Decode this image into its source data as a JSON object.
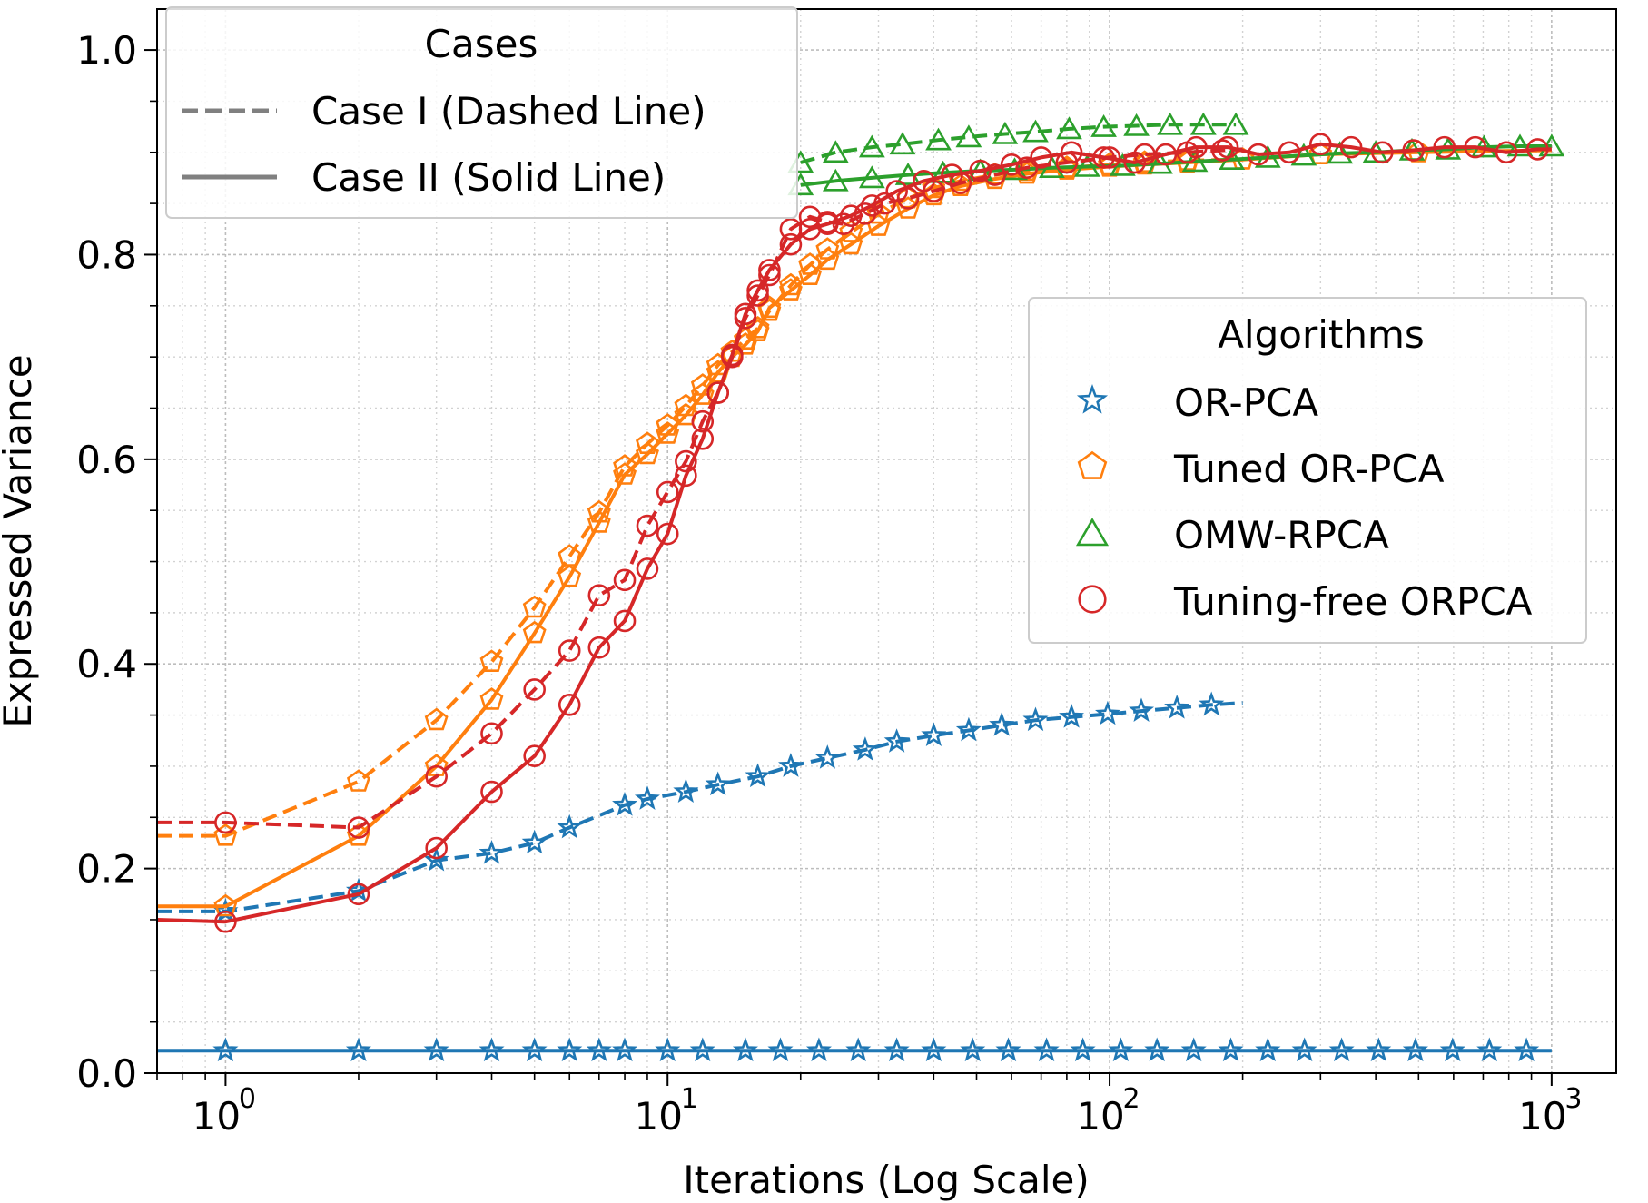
{
  "chart_data": {
    "type": "line",
    "title": "",
    "xlabel": "Iterations (Log Scale)",
    "ylabel": "Expressed Variance",
    "xscale": "log",
    "xlim": [
      0.7,
      1400
    ],
    "ylim": [
      0,
      1.04
    ],
    "grid": true,
    "x_ticks": [
      {
        "value": 1,
        "base": "10",
        "exp": "0"
      },
      {
        "value": 10,
        "base": "10",
        "exp": "1"
      },
      {
        "value": 100,
        "base": "10",
        "exp": "2"
      },
      {
        "value": 1000,
        "base": "10",
        "exp": "3"
      }
    ],
    "y_ticks": [
      {
        "value": 0.0,
        "label": "0.0"
      },
      {
        "value": 0.2,
        "label": "0.2"
      },
      {
        "value": 0.4,
        "label": "0.4"
      },
      {
        "value": 0.6,
        "label": "0.6"
      },
      {
        "value": 0.8,
        "label": "0.8"
      },
      {
        "value": 1.0,
        "label": "1.0"
      }
    ],
    "colors": {
      "OR-PCA": "#1f77b4",
      "Tuned OR-PCA": "#ff7f0e",
      "OMW-RPCA": "#2ca02c",
      "Tuning-free ORPCA": "#d62728"
    },
    "legend_cases": {
      "title": "Cases",
      "placement": "upper-left",
      "entries": [
        {
          "label": "Case I (Dashed Line)",
          "style": "dashed"
        },
        {
          "label": "Case II (Solid Line)",
          "style": "solid"
        }
      ]
    },
    "legend_algorithms": {
      "title": "Algorithms",
      "placement": "center-right",
      "entries": [
        {
          "label": "OR-PCA",
          "marker": "star",
          "color": "#1f77b4"
        },
        {
          "label": "Tuned OR-PCA",
          "marker": "pentagon",
          "color": "#ff7f0e"
        },
        {
          "label": "OMW-RPCA",
          "marker": "triangle",
          "color": "#2ca02c"
        },
        {
          "label": "Tuning-free ORPCA",
          "marker": "circle",
          "color": "#d62728"
        }
      ]
    },
    "series": [
      {
        "algorithm": "OR-PCA",
        "case": "Case I",
        "style": "dashed",
        "marker": "star",
        "color": "#1f77b4",
        "x": [
          0.7,
          1,
          2,
          3,
          4,
          5,
          6,
          8,
          9,
          11,
          13,
          16,
          19,
          23,
          28,
          33,
          40,
          48,
          57,
          68,
          82,
          99,
          118,
          142,
          170,
          200
        ],
        "y": [
          0.158,
          0.158,
          0.178,
          0.208,
          0.215,
          0.225,
          0.24,
          0.262,
          0.268,
          0.275,
          0.282,
          0.29,
          0.3,
          0.308,
          0.316,
          0.324,
          0.33,
          0.335,
          0.34,
          0.345,
          0.348,
          0.351,
          0.354,
          0.357,
          0.36,
          0.362
        ],
        "markers": [
          false,
          true,
          true,
          true,
          true,
          true,
          true,
          true,
          true,
          true,
          true,
          true,
          true,
          true,
          true,
          true,
          true,
          true,
          true,
          true,
          true,
          true,
          true,
          true,
          true,
          false
        ]
      },
      {
        "algorithm": "OR-PCA",
        "case": "Case II",
        "style": "solid",
        "marker": "star",
        "color": "#1f77b4",
        "x": [
          0.7,
          1,
          2,
          3,
          4,
          5,
          6,
          7,
          8,
          10,
          12,
          15,
          18,
          22,
          27,
          33,
          40,
          49,
          59,
          72,
          87,
          106,
          128,
          155,
          188,
          228,
          276,
          335,
          406,
          492,
          597,
          723,
          877,
          1000
        ],
        "y": [
          0.022,
          0.022,
          0.022,
          0.022,
          0.022,
          0.022,
          0.022,
          0.022,
          0.022,
          0.022,
          0.022,
          0.022,
          0.022,
          0.022,
          0.022,
          0.022,
          0.022,
          0.022,
          0.022,
          0.022,
          0.022,
          0.022,
          0.022,
          0.022,
          0.022,
          0.022,
          0.022,
          0.022,
          0.022,
          0.022,
          0.022,
          0.022,
          0.022,
          0.022
        ],
        "markers": [
          false,
          true,
          true,
          true,
          true,
          true,
          true,
          true,
          true,
          true,
          true,
          true,
          true,
          true,
          true,
          true,
          true,
          true,
          true,
          true,
          true,
          true,
          true,
          true,
          true,
          true,
          true,
          true,
          true,
          true,
          true,
          true,
          true,
          false
        ]
      },
      {
        "algorithm": "Tuned OR-PCA",
        "case": "Case I",
        "style": "dashed",
        "marker": "pentagon",
        "color": "#ff7f0e",
        "x": [
          0.7,
          1,
          2,
          3,
          4,
          5,
          6,
          7,
          8,
          9,
          10,
          11,
          12,
          13,
          14,
          15,
          16,
          17,
          19,
          21,
          23,
          26,
          30,
          35,
          40,
          46,
          55,
          65,
          80,
          100,
          120,
          150,
          200
        ],
        "y": [
          0.232,
          0.232,
          0.285,
          0.345,
          0.402,
          0.455,
          0.505,
          0.548,
          0.593,
          0.615,
          0.633,
          0.652,
          0.672,
          0.692,
          0.705,
          0.717,
          0.728,
          0.745,
          0.77,
          0.79,
          0.805,
          0.822,
          0.84,
          0.855,
          0.865,
          0.872,
          0.878,
          0.882,
          0.885,
          0.888,
          0.89,
          0.892,
          0.893
        ],
        "markers": [
          false,
          true,
          true,
          true,
          true,
          true,
          true,
          true,
          true,
          true,
          true,
          true,
          true,
          true,
          true,
          true,
          true,
          true,
          true,
          true,
          true,
          true,
          true,
          true,
          true,
          true,
          true,
          true,
          true,
          true,
          true,
          true,
          false
        ]
      },
      {
        "algorithm": "Tuned OR-PCA",
        "case": "Case II",
        "style": "solid",
        "marker": "pentagon",
        "color": "#ff7f0e",
        "x": [
          0.7,
          1,
          2,
          3,
          4,
          5,
          6,
          7,
          8,
          9,
          10,
          11,
          12,
          13,
          14,
          15,
          16,
          17,
          19,
          21,
          23,
          26,
          30,
          35,
          40,
          46,
          55,
          65,
          80,
          100,
          120,
          150,
          200,
          300,
          500,
          1000
        ],
        "y": [
          0.163,
          0.163,
          0.232,
          0.3,
          0.365,
          0.43,
          0.485,
          0.538,
          0.585,
          0.605,
          0.625,
          0.643,
          0.663,
          0.685,
          0.7,
          0.712,
          0.725,
          0.748,
          0.765,
          0.78,
          0.795,
          0.81,
          0.828,
          0.845,
          0.858,
          0.867,
          0.874,
          0.879,
          0.883,
          0.886,
          0.888,
          0.89,
          0.893,
          0.898,
          0.9,
          0.902
        ],
        "markers": [
          false,
          true,
          true,
          true,
          true,
          true,
          true,
          true,
          true,
          true,
          true,
          true,
          true,
          true,
          true,
          true,
          true,
          true,
          true,
          true,
          true,
          true,
          true,
          true,
          true,
          true,
          true,
          true,
          true,
          true,
          true,
          true,
          true,
          true,
          true,
          false
        ]
      },
      {
        "algorithm": "OMW-RPCA",
        "case": "Case I",
        "style": "dashed",
        "marker": "triangle",
        "color": "#2ca02c",
        "x": [
          20,
          24,
          29,
          34,
          41,
          48,
          58,
          68,
          81,
          97,
          115,
          137,
          163,
          193
        ],
        "y": [
          0.89,
          0.9,
          0.905,
          0.908,
          0.912,
          0.915,
          0.918,
          0.92,
          0.923,
          0.925,
          0.926,
          0.927,
          0.927,
          0.927
        ],
        "markers": [
          true,
          true,
          true,
          true,
          true,
          true,
          true,
          true,
          true,
          true,
          true,
          true,
          true,
          true
        ]
      },
      {
        "algorithm": "OMW-RPCA",
        "case": "Case II",
        "style": "solid",
        "marker": "triangle",
        "color": "#2ca02c",
        "x": [
          20,
          24,
          29,
          35,
          42,
          51,
          61,
          74,
          89,
          107,
          130,
          156,
          189,
          228,
          275,
          332,
          400,
          483,
          583,
          703,
          848,
          1000
        ],
        "y": [
          0.868,
          0.872,
          0.875,
          0.878,
          0.88,
          0.882,
          0.883,
          0.885,
          0.886,
          0.887,
          0.889,
          0.891,
          0.893,
          0.895,
          0.897,
          0.899,
          0.9,
          0.902,
          0.903,
          0.905,
          0.906,
          0.906
        ],
        "markers": [
          true,
          true,
          true,
          true,
          true,
          true,
          true,
          true,
          true,
          true,
          true,
          true,
          true,
          true,
          true,
          true,
          true,
          true,
          true,
          true,
          true,
          true
        ]
      },
      {
        "algorithm": "Tuning-free ORPCA",
        "case": "Case I",
        "style": "dashed",
        "marker": "circle",
        "color": "#d62728",
        "x": [
          0.7,
          1,
          2,
          3,
          4,
          5,
          6,
          7,
          8,
          9,
          10,
          11,
          12,
          13,
          14,
          15,
          16,
          17,
          19,
          21,
          23,
          25,
          28,
          31,
          35,
          40,
          46,
          55,
          65,
          80,
          100,
          120,
          150,
          180,
          200
        ],
        "y": [
          0.245,
          0.245,
          0.24,
          0.29,
          0.332,
          0.375,
          0.413,
          0.467,
          0.482,
          0.535,
          0.568,
          0.598,
          0.637,
          0.665,
          0.7,
          0.738,
          0.76,
          0.78,
          0.825,
          0.837,
          0.832,
          0.83,
          0.84,
          0.85,
          0.855,
          0.862,
          0.87,
          0.878,
          0.885,
          0.89,
          0.895,
          0.898,
          0.9,
          0.902,
          0.903
        ],
        "markers": [
          false,
          true,
          true,
          true,
          true,
          true,
          true,
          true,
          true,
          true,
          true,
          true,
          true,
          true,
          true,
          true,
          true,
          true,
          true,
          true,
          true,
          true,
          true,
          true,
          true,
          true,
          true,
          true,
          true,
          true,
          true,
          true,
          true,
          true,
          false
        ]
      },
      {
        "algorithm": "Tuning-free ORPCA",
        "case": "Case II",
        "style": "solid",
        "marker": "circle",
        "color": "#d62728",
        "x": [
          0.7,
          1,
          2,
          3,
          4,
          5,
          6,
          7,
          8,
          9,
          10,
          11,
          12,
          13,
          14,
          15,
          16,
          17,
          19,
          21,
          23,
          26,
          29,
          33,
          38,
          44,
          51,
          60,
          70,
          82,
          97,
          114,
          134,
          157,
          185,
          217,
          255,
          300,
          352,
          414,
          487,
          572,
          672,
          790,
          929,
          1000
        ],
        "y": [
          0.15,
          0.148,
          0.175,
          0.22,
          0.275,
          0.31,
          0.36,
          0.416,
          0.442,
          0.493,
          0.527,
          0.584,
          0.62,
          0.665,
          0.702,
          0.742,
          0.765,
          0.785,
          0.81,
          0.825,
          0.83,
          0.838,
          0.848,
          0.862,
          0.872,
          0.878,
          0.882,
          0.888,
          0.895,
          0.9,
          0.895,
          0.89,
          0.898,
          0.905,
          0.905,
          0.898,
          0.9,
          0.908,
          0.905,
          0.9,
          0.902,
          0.905,
          0.905,
          0.9,
          0.903,
          0.903
        ],
        "markers": [
          false,
          true,
          true,
          true,
          true,
          true,
          true,
          true,
          true,
          true,
          true,
          true,
          true,
          true,
          true,
          true,
          true,
          true,
          true,
          true,
          true,
          true,
          true,
          true,
          true,
          true,
          true,
          true,
          true,
          true,
          true,
          true,
          true,
          true,
          true,
          true,
          true,
          true,
          true,
          true,
          true,
          true,
          true,
          true,
          true,
          false
        ]
      }
    ]
  }
}
